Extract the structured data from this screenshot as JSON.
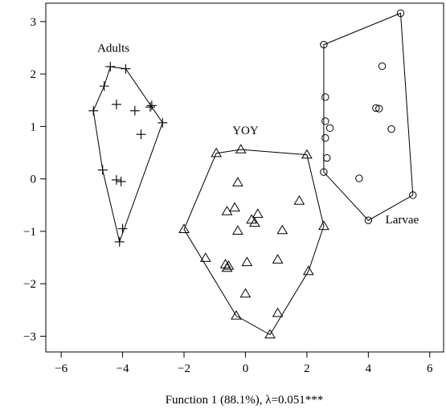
{
  "chart_data": {
    "type": "scatter",
    "xlabel": "Function 1 (88.1%), λ=0.051***",
    "ylabel": "",
    "xlim": [
      -6.5,
      6.45
    ],
    "ylim": [
      -3.3,
      3.35
    ],
    "xticks": [
      -6,
      -4,
      -2,
      0,
      2,
      4,
      6
    ],
    "yticks": [
      -3,
      -2,
      -1,
      0,
      1,
      2,
      3
    ],
    "xtick_labels": [
      "−6",
      "−4",
      "−2",
      "0",
      "2",
      "4",
      "6"
    ],
    "ytick_labels": [
      "−3",
      "−2",
      "−1",
      "0",
      "1",
      "2",
      "3"
    ],
    "grid": false,
    "groups": [
      {
        "name": "Adults",
        "marker": "plus",
        "label": {
          "x": -4.3,
          "y": 2.42
        },
        "points": [
          [
            -4.4,
            2.14
          ],
          [
            -3.9,
            2.1
          ],
          [
            -4.6,
            1.77
          ],
          [
            -4.95,
            1.3
          ],
          [
            -4.2,
            1.42
          ],
          [
            -3.6,
            1.3
          ],
          [
            -3.1,
            1.37
          ],
          [
            -3.05,
            1.4
          ],
          [
            -2.7,
            1.07
          ],
          [
            -3.4,
            0.85
          ],
          [
            -4.65,
            0.17
          ],
          [
            -4.2,
            -0.02
          ],
          [
            -4.05,
            -0.05
          ],
          [
            -4.0,
            -0.95
          ],
          [
            -4.1,
            -1.2
          ]
        ],
        "hull": [
          [
            -4.4,
            2.14
          ],
          [
            -3.9,
            2.1
          ],
          [
            -2.7,
            1.07
          ],
          [
            -4.1,
            -1.2
          ],
          [
            -4.65,
            0.17
          ],
          [
            -4.95,
            1.3
          ],
          [
            -4.6,
            1.77
          ]
        ]
      },
      {
        "name": "YOY",
        "marker": "triangle",
        "label": {
          "x": 0.0,
          "y": 0.85
        },
        "points": [
          [
            -0.15,
            0.56
          ],
          [
            -0.95,
            0.49
          ],
          [
            2.0,
            0.46
          ],
          [
            -0.25,
            -0.07
          ],
          [
            -0.6,
            -0.62
          ],
          [
            -0.35,
            -0.55
          ],
          [
            -2.0,
            -0.96
          ],
          [
            0.2,
            -0.78
          ],
          [
            0.3,
            -0.84
          ],
          [
            0.4,
            -0.67
          ],
          [
            1.75,
            -0.42
          ],
          [
            -0.25,
            -0.99
          ],
          [
            1.2,
            -0.98
          ],
          [
            2.55,
            -0.9
          ],
          [
            -1.3,
            -1.51
          ],
          [
            -0.65,
            -1.63
          ],
          [
            -0.55,
            -1.66
          ],
          [
            -0.6,
            -1.7
          ],
          [
            0.05,
            -1.59
          ],
          [
            1.05,
            -1.54
          ],
          [
            2.05,
            -1.76
          ],
          [
            0.0,
            -2.19
          ],
          [
            -0.3,
            -2.61
          ],
          [
            1.05,
            -2.56
          ],
          [
            0.8,
            -2.97
          ]
        ],
        "hull": [
          [
            -0.15,
            0.56
          ],
          [
            2.0,
            0.46
          ],
          [
            2.55,
            -0.9
          ],
          [
            2.05,
            -1.76
          ],
          [
            0.8,
            -2.97
          ],
          [
            -0.3,
            -2.61
          ],
          [
            -2.0,
            -0.96
          ],
          [
            -0.95,
            0.49
          ]
        ]
      },
      {
        "name": "Larvae",
        "marker": "circle",
        "label": {
          "x": 5.1,
          "y": -0.85
        },
        "points": [
          [
            5.05,
            3.16
          ],
          [
            2.55,
            2.56
          ],
          [
            4.45,
            2.15
          ],
          [
            2.6,
            1.56
          ],
          [
            4.25,
            1.35
          ],
          [
            4.35,
            1.34
          ],
          [
            2.6,
            1.1
          ],
          [
            2.75,
            0.97
          ],
          [
            4.75,
            0.95
          ],
          [
            2.6,
            0.78
          ],
          [
            2.65,
            0.4
          ],
          [
            2.55,
            0.13
          ],
          [
            3.7,
            0.01
          ],
          [
            5.45,
            -0.31
          ],
          [
            4.0,
            -0.79
          ]
        ],
        "hull": [
          [
            2.55,
            2.56
          ],
          [
            5.05,
            3.16
          ],
          [
            5.45,
            -0.31
          ],
          [
            4.0,
            -0.79
          ],
          [
            2.55,
            0.13
          ]
        ]
      }
    ]
  }
}
